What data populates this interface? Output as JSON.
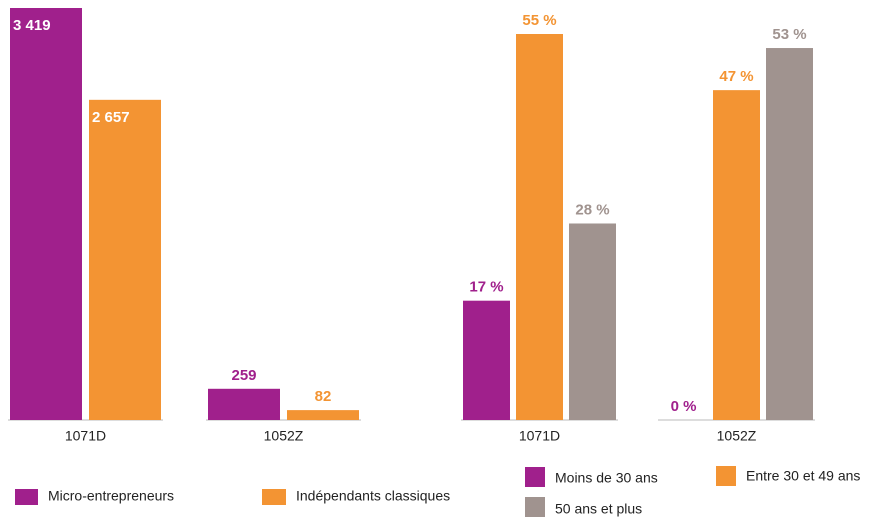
{
  "chart_data": [
    {
      "type": "bar",
      "categories": [
        "1071D",
        "1052Z"
      ],
      "series": [
        {
          "name": "Micro-entrepreneurs",
          "color": "#a0208c",
          "values": [
            3419,
            259
          ],
          "value_labels": [
            "3 419",
            "259"
          ]
        },
        {
          "name": "Indépendants classiques",
          "color": "#f39433",
          "values": [
            2657,
            82
          ],
          "value_labels": [
            "2 657",
            "82"
          ]
        }
      ]
    },
    {
      "type": "bar",
      "categories": [
        "1071D",
        "1052Z"
      ],
      "series": [
        {
          "name": "Moins de 30 ans",
          "color": "#a0208c",
          "values": [
            17,
            0
          ],
          "value_labels": [
            "17 %",
            "0 %"
          ]
        },
        {
          "name": "Entre 30 et 49 ans",
          "color": "#f39433",
          "values": [
            55,
            47
          ],
          "value_labels": [
            "55 %",
            "47 %"
          ]
        },
        {
          "name": "50 ans et plus",
          "color": "#a0938f",
          "values": [
            28,
            53
          ],
          "value_labels": [
            "28 %",
            "53 %"
          ]
        }
      ]
    }
  ]
}
